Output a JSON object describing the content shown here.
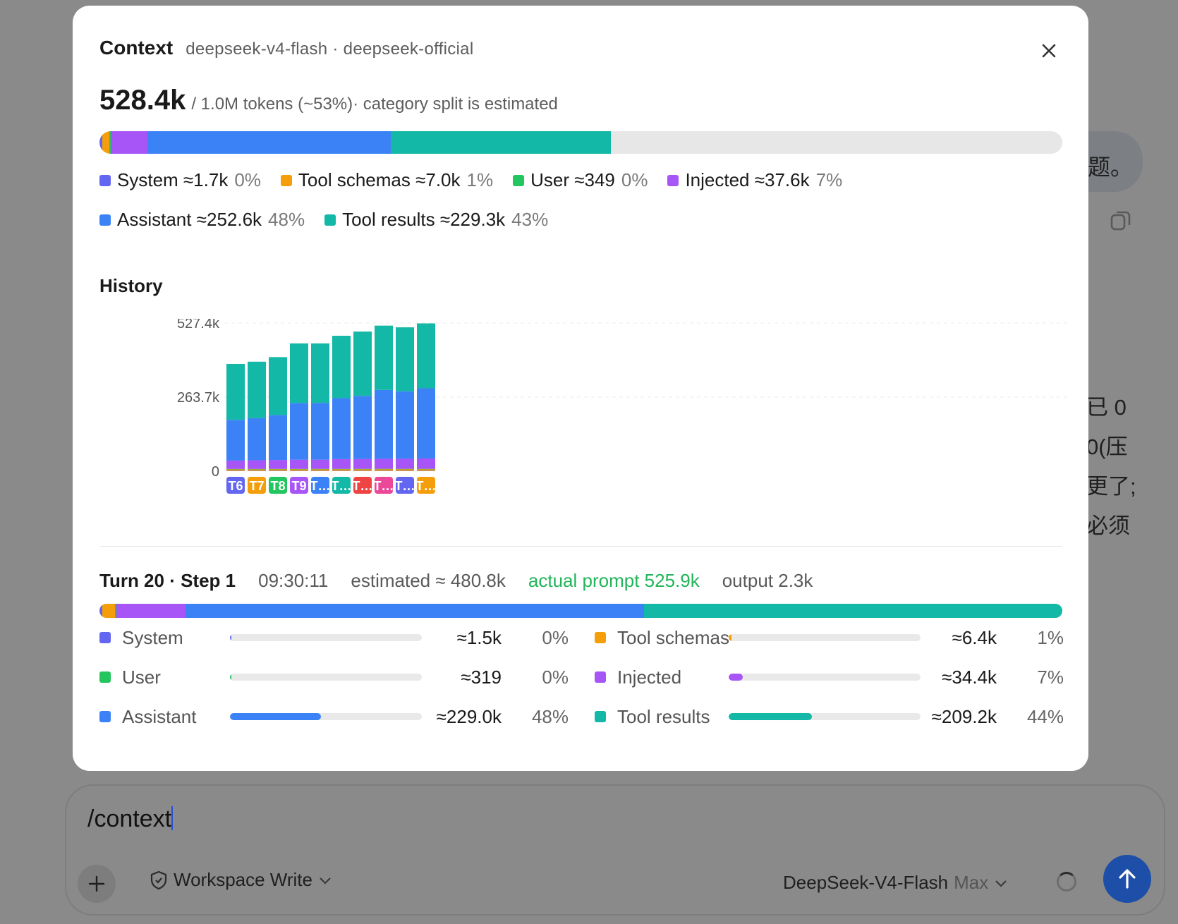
{
  "background": {
    "bubble_text": "题。",
    "lines": [
      "已 0",
      "0(压",
      "更了;",
      "必须"
    ]
  },
  "composer": {
    "input_value": "/context",
    "permission_label": "Workspace Write",
    "model_name": "DeepSeek-V4-Flash",
    "model_effort": "Max"
  },
  "modal": {
    "title": "Context",
    "subtitle": "deepseek-v4-flash · deepseek-official",
    "total_tokens": "528.4k",
    "total_rest": "/ 1.0M tokens (~53%)· category split is estimated",
    "overall": [
      {
        "key": "system",
        "label": "System ≈1.7k",
        "pct": "0%",
        "color": "#6366f1",
        "fraction": 0.003
      },
      {
        "key": "tool_schemas",
        "label": "Tool schemas ≈7.0k",
        "pct": "1%",
        "color": "#f59e0b",
        "fraction": 0.007
      },
      {
        "key": "user",
        "label": "User ≈349",
        "pct": "0%",
        "color": "#22c55e",
        "fraction": 0.0003
      },
      {
        "key": "injected",
        "label": "Injected ≈37.6k",
        "pct": "7%",
        "color": "#a855f7",
        "fraction": 0.038
      },
      {
        "key": "assistant",
        "label": "Assistant ≈252.6k",
        "pct": "48%",
        "color": "#3b82f6",
        "fraction": 0.253
      },
      {
        "key": "tool_results",
        "label": "Tool results ≈229.3k",
        "pct": "43%",
        "color": "#14b8a6",
        "fraction": 0.229
      }
    ],
    "history_title": "History",
    "turn": {
      "title": "Turn 20 · Step 1",
      "time": "09:30:11",
      "estimated": "estimated ≈ 480.8k",
      "actual": "actual prompt 525.9k",
      "output": "output 2.3k",
      "stack_fractions": [
        0.003,
        0.013,
        0.0007,
        0.072,
        0.476,
        0.435
      ]
    },
    "breakdown": [
      {
        "name": "System",
        "value": "≈1.5k",
        "pct": "0%",
        "color": "#6366f1",
        "fraction": 0.003
      },
      {
        "name": "Tool schemas",
        "value": "≈6.4k",
        "pct": "1%",
        "color": "#f59e0b",
        "fraction": 0.013
      },
      {
        "name": "User",
        "value": "≈319",
        "pct": "0%",
        "color": "#22c55e",
        "fraction": 0.001
      },
      {
        "name": "Injected",
        "value": "≈34.4k",
        "pct": "7%",
        "color": "#a855f7",
        "fraction": 0.072
      },
      {
        "name": "Assistant",
        "value": "≈229.0k",
        "pct": "48%",
        "color": "#3b82f6",
        "fraction": 0.476
      },
      {
        "name": "Tool results",
        "value": "≈209.2k",
        "pct": "44%",
        "color": "#14b8a6",
        "fraction": 0.435
      }
    ]
  },
  "chart_data": {
    "type": "bar",
    "stacked": true,
    "categories": [
      "T6",
      "T7",
      "T8",
      "T9",
      "T…",
      "T…",
      "T…",
      "T…",
      "T…",
      "T…"
    ],
    "category_colors": [
      "#6366f1",
      "#f59e0b",
      "#22c55e",
      "#a855f7",
      "#3b82f6",
      "#14b8a6",
      "#ef4444",
      "#ec4899",
      "#6366f1",
      "#f59e0b"
    ],
    "yticks": [
      "0",
      "263.7k",
      "527.4k"
    ],
    "ylim": [
      0,
      527.4
    ],
    "series": [
      {
        "key": "system",
        "color": "#6366f1",
        "values": [
          1.5,
          1.5,
          1.5,
          1.5,
          1.5,
          1.5,
          1.5,
          1.5,
          1.5,
          1.5
        ]
      },
      {
        "key": "tool_schemas",
        "color": "#f59e0b",
        "values": [
          6.0,
          6.0,
          6.2,
          6.2,
          6.2,
          6.3,
          6.3,
          6.4,
          6.4,
          6.4
        ]
      },
      {
        "key": "user",
        "color": "#22c55e",
        "values": [
          0.3,
          0.3,
          0.3,
          0.3,
          0.3,
          0.3,
          0.3,
          0.3,
          0.3,
          0.3
        ]
      },
      {
        "key": "injected",
        "color": "#a855f7",
        "values": [
          30,
          31,
          32,
          33,
          33,
          35,
          35,
          36,
          36,
          37
        ]
      },
      {
        "key": "assistant",
        "color": "#3b82f6",
        "values": [
          145,
          150,
          160,
          202,
          202,
          217,
          225,
          245,
          240,
          250
        ]
      },
      {
        "key": "tool_results",
        "color": "#14b8a6",
        "values": [
          199,
          201,
          206,
          212,
          212,
          222,
          229,
          229,
          228,
          231
        ]
      }
    ],
    "grid": true
  }
}
